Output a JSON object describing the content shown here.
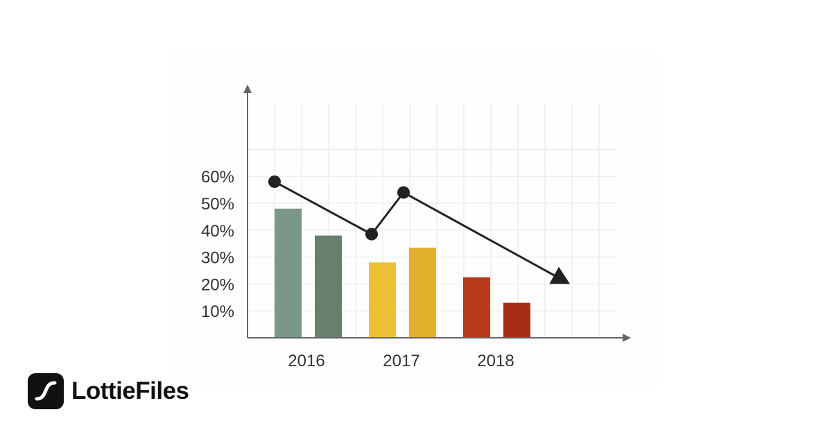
{
  "chart_data": {
    "type": "bar",
    "title": "",
    "xlabel": "",
    "ylabel": "",
    "categories": [
      "2016",
      "2017",
      "2018"
    ],
    "yticks": [
      "10%",
      "20%",
      "30%",
      "40%",
      "50%",
      "60%"
    ],
    "ylim": [
      0,
      70
    ],
    "grid": true,
    "bars": [
      {
        "category": "2016",
        "value": 48,
        "color": "#7a9887"
      },
      {
        "category": "2016",
        "value": 38,
        "color": "#697f6e"
      },
      {
        "category": "2017",
        "value": 28,
        "color": "#efc034"
      },
      {
        "category": "2017",
        "value": 33.5,
        "color": "#e3b02d"
      },
      {
        "category": "2018",
        "value": 22.5,
        "color": "#b83a1a"
      },
      {
        "category": "2018",
        "value": 13,
        "color": "#a82d16"
      }
    ],
    "trend_line": {
      "values": [
        58,
        38.5,
        54,
        20
      ],
      "color": "#222222",
      "ends_with_arrow": true
    },
    "axis_color": "#666666",
    "grid_color": "#e7e7e7"
  },
  "brand": {
    "name": "LottieFiles",
    "logo_icon": "lottiefiles-logo-icon",
    "color": "#111111"
  }
}
